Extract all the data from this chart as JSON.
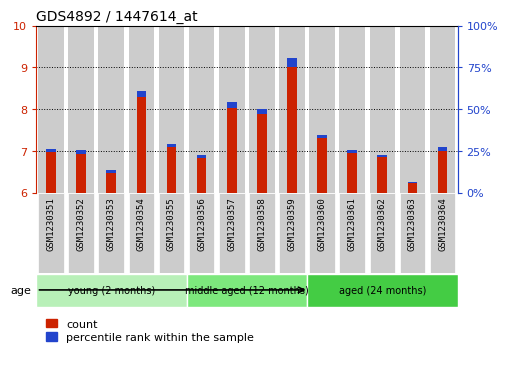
{
  "title": "GDS4892 / 1447614_at",
  "samples": [
    "GSM1230351",
    "GSM1230352",
    "GSM1230353",
    "GSM1230354",
    "GSM1230355",
    "GSM1230356",
    "GSM1230357",
    "GSM1230358",
    "GSM1230359",
    "GSM1230360",
    "GSM1230361",
    "GSM1230362",
    "GSM1230363",
    "GSM1230364"
  ],
  "red_values": [
    6.98,
    6.92,
    6.48,
    8.28,
    7.1,
    6.82,
    8.02,
    7.88,
    9.02,
    7.3,
    6.96,
    6.86,
    6.22,
    7.0
  ],
  "blue_values": [
    0.07,
    0.09,
    0.06,
    0.16,
    0.07,
    0.07,
    0.16,
    0.13,
    0.2,
    0.09,
    0.07,
    0.05,
    0.04,
    0.09
  ],
  "ymin": 6,
  "ymax": 10,
  "yticks_left": [
    6,
    7,
    8,
    9,
    10
  ],
  "yticks_right": [
    0,
    25,
    50,
    75,
    100
  ],
  "groups": [
    {
      "label": "young (2 months)",
      "indices": [
        0,
        1,
        2,
        3,
        4
      ]
    },
    {
      "label": "middle aged (12 months)",
      "indices": [
        5,
        6,
        7,
        8
      ]
    },
    {
      "label": "aged (24 months)",
      "indices": [
        9,
        10,
        11,
        12,
        13
      ]
    }
  ],
  "group_colors": [
    "#b8f0b8",
    "#7de87d",
    "#44cc44"
  ],
  "age_label": "age",
  "legend_red": "count",
  "legend_blue": "percentile rank within the sample",
  "bar_bg_color": "#cccccc",
  "red_color": "#cc2200",
  "blue_color": "#2244cc",
  "left_axis_color": "#cc2200",
  "right_axis_color": "#2244cc",
  "right_tick_labels": [
    "100%",
    "75%",
    "50%",
    "25%",
    "0%"
  ]
}
